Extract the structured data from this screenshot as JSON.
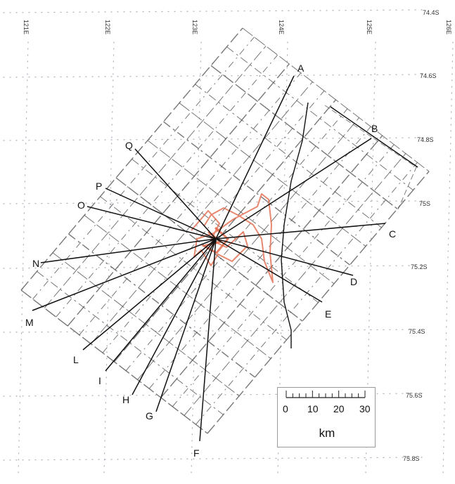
{
  "map": {
    "longitude_labels": [
      "121E",
      "122E",
      "123E",
      "124E",
      "125E",
      "126E"
    ],
    "latitude_labels": [
      "74.4S",
      "74.6S",
      "74.8S",
      "75S",
      "75.2S",
      "75.4S",
      "75.6S",
      "75.8S"
    ],
    "profile_lines": [
      "A",
      "B",
      "C",
      "D",
      "E",
      "F",
      "G",
      "H",
      "I",
      "L",
      "M",
      "N",
      "O",
      "P",
      "Q"
    ],
    "colors": {
      "profile_line": "#111111",
      "survey_grid": "#4a4a4a",
      "trace": "#e26a4c"
    }
  },
  "scale_bar": {
    "ticks": [
      "0",
      "10",
      "20",
      "30"
    ],
    "unit": "km"
  }
}
